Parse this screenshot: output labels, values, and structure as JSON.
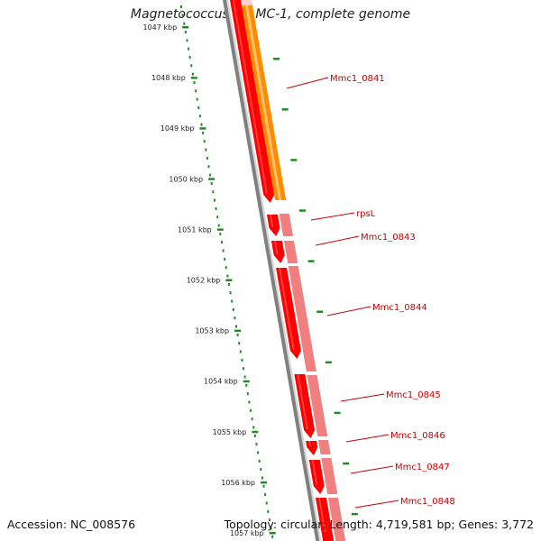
{
  "title": "Magnetococcus sp. MC-1, complete genome",
  "accession_text": "Accession: NC_008576",
  "summary_text": "Topology: circular; Length: 4,719,581 bp; Genes: 3,772",
  "colors": {
    "ruler": "#228b22",
    "backbone": "#808080",
    "gene_forward": "#ff0000",
    "gene_reverse": "#f08080",
    "gene_orange": "#ff8c00",
    "label": "#cc0000"
  },
  "ruler_ticks": [
    "1047 kbp",
    "1048 kbp",
    "1049 kbp",
    "1050 kbp",
    "1051 kbp",
    "1052 kbp",
    "1053 kbp",
    "1054 kbp",
    "1055 kbp",
    "1056 kbp",
    "1057 kbp"
  ],
  "gene_labels": [
    "Mmc1_0841",
    "rpsL",
    "Mmc1_0843",
    "Mmc1_0844",
    "Mmc1_0845",
    "Mmc1_0846",
    "Mmc1_0847",
    "Mmc1_0848"
  ]
}
